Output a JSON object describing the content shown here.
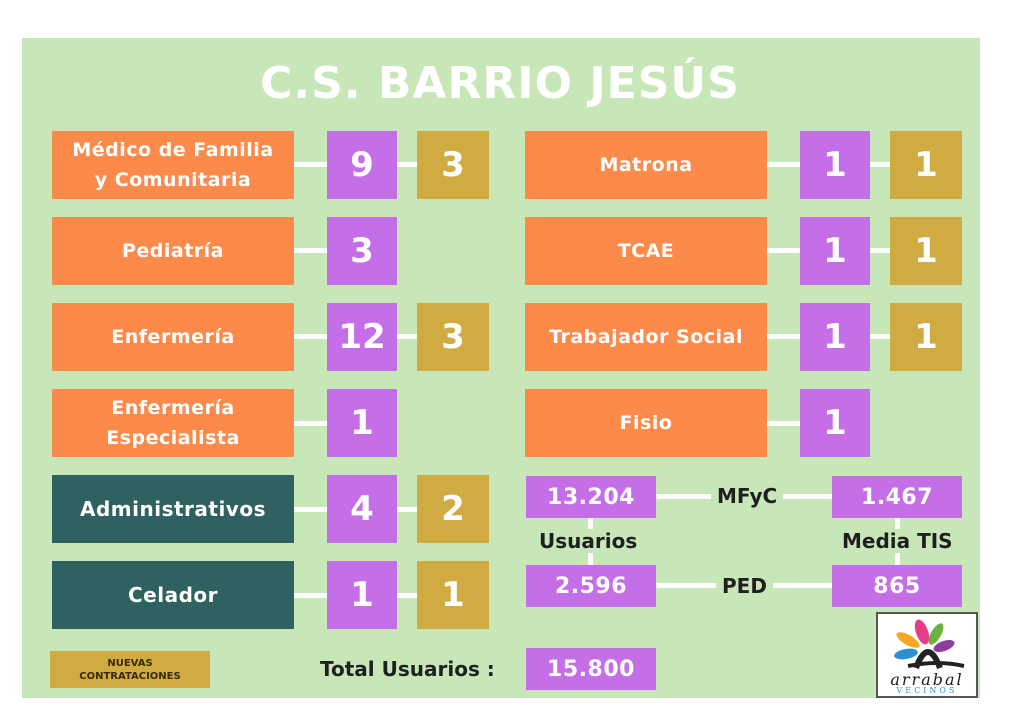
{
  "title": "C.S. BARRIO JESÚS",
  "left_rows": [
    {
      "label_lines": [
        "Médico de Familia",
        "y Comunitaria"
      ],
      "count": "9",
      "new": "3"
    },
    {
      "label_lines": [
        "Pediatría"
      ],
      "count": "3",
      "new": null
    },
    {
      "label_lines": [
        "Enfermería"
      ],
      "count": "12",
      "new": "3"
    },
    {
      "label_lines": [
        "Enfermería",
        "Especialista"
      ],
      "count": "1",
      "new": null
    },
    {
      "label_lines": [
        "Administrativos"
      ],
      "count": "4",
      "new": "2"
    },
    {
      "label_lines": [
        "Celador"
      ],
      "count": "1",
      "new": "1"
    }
  ],
  "right_rows": [
    {
      "label": "Matrona",
      "count": "1",
      "new": "1"
    },
    {
      "label": "TCAE",
      "count": "1",
      "new": "1"
    },
    {
      "label": "Trabajador Social",
      "count": "1",
      "new": "1"
    },
    {
      "label": "Fisio",
      "count": "1",
      "new": null
    }
  ],
  "stats": {
    "mfyc_users": "13.204",
    "mfyc_label": "MFyC",
    "mfyc_tis": "1.467",
    "usuarios_label": "Usuarios",
    "media_tis_label": "Media TIS",
    "ped_users": "2.596",
    "ped_label": "PED",
    "ped_tis": "865"
  },
  "total": {
    "label": "Total Usuarios :",
    "value": "15.800"
  },
  "legend": {
    "line1": "NUEVAS",
    "line2": "CONTRATACIONES"
  },
  "logo": {
    "text": "arrabal",
    "subtext": "VECINOS"
  },
  "colors": {
    "background": "#c7e7b8",
    "category": "#fb8a4b",
    "category_dark": "#2f6160",
    "count": "#c46ee8",
    "new_hires": "#cfab42"
  }
}
